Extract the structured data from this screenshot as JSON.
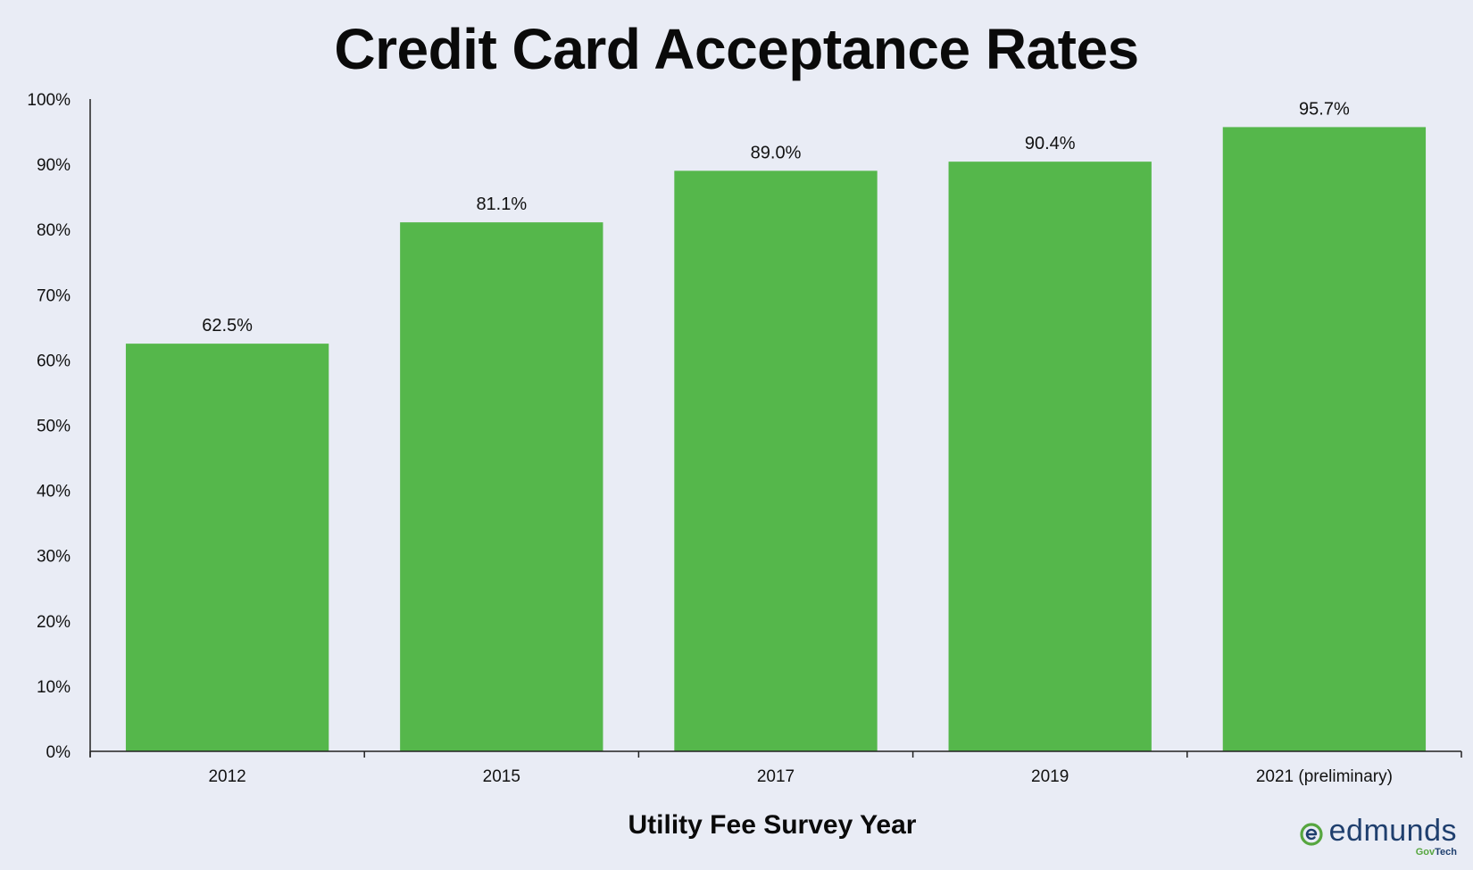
{
  "chart_data": {
    "type": "bar",
    "title": "Credit Card Acceptance Rates",
    "xlabel": "Utility Fee Survey Year",
    "ylabel": "",
    "categories": [
      "2012",
      "2015",
      "2017",
      "2019",
      "2021 (preliminary)"
    ],
    "values": [
      62.5,
      81.1,
      89.0,
      90.4,
      95.7
    ],
    "value_labels": [
      "62.5%",
      "81.1%",
      "89.0%",
      "90.4%",
      "95.7%"
    ],
    "ylim": [
      0,
      100
    ],
    "yticks": [
      0,
      10,
      20,
      30,
      40,
      50,
      60,
      70,
      80,
      90,
      100
    ],
    "ytick_labels": [
      "0%",
      "10%",
      "20%",
      "30%",
      "40%",
      "50%",
      "60%",
      "70%",
      "80%",
      "90%",
      "100%"
    ],
    "grid": false,
    "legend": "none",
    "bar_color": "#55b74b"
  },
  "logo": {
    "word": "edmunds",
    "sub_a": "Gov",
    "sub_b": "Tech",
    "accent": "#56a63f",
    "brand": "#1f3f6e"
  }
}
